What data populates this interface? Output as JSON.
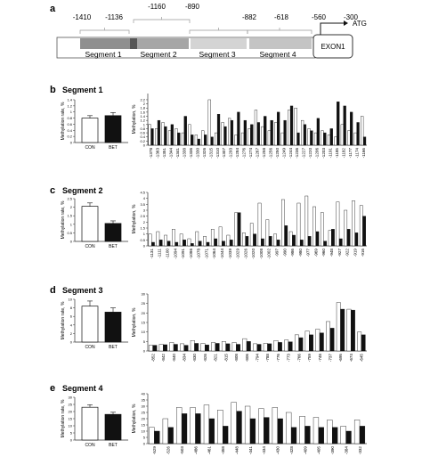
{
  "chart_data": [
    {
      "type": "diagram",
      "panel_label": "a",
      "positions_top": [
        "-1410",
        "-1136",
        "-1160",
        "-890",
        "-882",
        "-618",
        "-560",
        "-300"
      ],
      "segments": [
        "Segment 1",
        "Segment 2",
        "Segment 3",
        "Segment 4"
      ],
      "exon_label": "EXON1",
      "atg_label": "ATG",
      "colors": {
        "seg1": "#8f8f8f",
        "seg1_dark": "#555555",
        "seg2": "#a6a6a6",
        "seg3": "#d4d4d4",
        "seg4": "#c4c4c4"
      }
    },
    {
      "type": "bar",
      "panel_label": "b",
      "title": "Segment 1",
      "summary": {
        "categories": [
          "CON",
          "BET"
        ],
        "values": [
          0.8,
          0.88
        ],
        "errors": [
          0.08,
          0.1
        ],
        "ylabel": "Methylation rate, %",
        "ylim": [
          0,
          1.4
        ],
        "ticks": [
          0,
          0.2,
          0.4,
          0.6,
          0.8,
          1.0,
          1.2,
          1.4
        ]
      },
      "ylabel": "Methylation, %",
      "ylim": [
        0,
        2.5
      ],
      "ticks": [
        0,
        0.2,
        0.4,
        0.6,
        0.8,
        1.0,
        1.2,
        1.4,
        1.6,
        1.8,
        2.0,
        2.2
      ],
      "categories": [
        "-1378",
        "-1363",
        "-1351",
        "-1344",
        "-1341",
        "-1338",
        "-1336",
        "-1330",
        "-1326",
        "-1315",
        "-1310",
        "-1307",
        "-1293",
        "-1284",
        "-1276",
        "-1274",
        "-1267",
        "-1258",
        "-1256",
        "-1250",
        "-1249",
        "-1244",
        "-1236",
        "-1227",
        "-1220",
        "-1206",
        "-1203",
        "-1191",
        "-1185",
        "-1182",
        "-1177",
        "-1174",
        "-1166"
      ],
      "series": [
        {
          "name": "CON",
          "values": [
            1.0,
            0.8,
            1.1,
            0.7,
            0.8,
            0.6,
            1.0,
            0.5,
            0.7,
            2.2,
            0.6,
            1.1,
            1.3,
            0.5,
            0.6,
            0.8,
            1.7,
            0.9,
            0.7,
            1.1,
            0.6,
            1.7,
            1.8,
            1.2,
            0.8,
            0.6,
            0.7,
            0.5,
            0.4,
            1.0,
            0.7,
            0.6,
            1.4
          ]
        },
        {
          "name": "BET",
          "values": [
            0.8,
            1.2,
            0.9,
            1.0,
            0.6,
            1.4,
            0.5,
            0.3,
            0.5,
            0.4,
            1.5,
            0.9,
            1.2,
            1.6,
            1.2,
            1.0,
            1.1,
            1.4,
            1.2,
            1.6,
            1.2,
            1.9,
            0.6,
            1.0,
            0.7,
            1.3,
            0.6,
            0.8,
            2.1,
            1.9,
            1.6,
            1.1,
            0.4
          ]
        }
      ]
    },
    {
      "type": "bar",
      "panel_label": "c",
      "title": "Segment 2",
      "summary": {
        "categories": [
          "CON",
          "BET"
        ],
        "values": [
          2.05,
          1.05
        ],
        "errors": [
          0.2,
          0.15
        ],
        "ylabel": "Methylation rate, %",
        "ylim": [
          0,
          2.5
        ],
        "ticks": [
          0,
          0.5,
          1.0,
          1.5,
          2.0,
          2.5
        ]
      },
      "ylabel": "Methylation, %",
      "ylim": [
        0,
        4.5
      ],
      "ticks": [
        0,
        0.5,
        1.0,
        1.5,
        2.0,
        2.5,
        3.0,
        3.5,
        4.0,
        4.5
      ],
      "categories": [
        "-1131",
        "-1111",
        "-1100",
        "-1094",
        "-1091",
        "-1086",
        "-1078",
        "-1071",
        "-1064",
        "-1044",
        "-1039",
        "-1029",
        "-1026",
        "-1020",
        "-1008",
        "-1002",
        "-997",
        "-990",
        "-986",
        "-980",
        "-977",
        "-969",
        "-960",
        "-948",
        "-927",
        "-922",
        "-919",
        "-916"
      ],
      "series": [
        {
          "name": "CON",
          "values": [
            1.0,
            1.2,
            0.9,
            1.4,
            1.0,
            0.6,
            1.2,
            0.8,
            1.4,
            1.6,
            0.9,
            2.8,
            1.1,
            1.9,
            3.6,
            2.2,
            1.0,
            3.9,
            1.2,
            3.6,
            4.2,
            3.3,
            2.8,
            1.3,
            3.7,
            3.0,
            3.8,
            3.4
          ]
        },
        {
          "name": "BET",
          "values": [
            0.3,
            0.5,
            0.4,
            0.3,
            0.5,
            0.2,
            0.4,
            0.3,
            0.6,
            0.4,
            0.5,
            2.8,
            0.8,
            1.0,
            0.6,
            0.8,
            0.5,
            1.7,
            0.9,
            0.5,
            0.8,
            1.2,
            0.4,
            1.4,
            0.6,
            1.4,
            1.1,
            2.5
          ]
        }
      ]
    },
    {
      "type": "bar",
      "panel_label": "d",
      "title": "Segment 3",
      "summary": {
        "categories": [
          "CON",
          "BET"
        ],
        "values": [
          8.4,
          7.0
        ],
        "errors": [
          1.2,
          1.0
        ],
        "ylabel": "Methylation rate, %",
        "ylim": [
          0,
          10
        ],
        "ticks": [
          0,
          2,
          4,
          6,
          8,
          10
        ]
      },
      "ylabel": "Methylation, %",
      "ylim": [
        0,
        30
      ],
      "ticks": [
        0,
        5,
        10,
        15,
        20,
        25,
        30
      ],
      "categories": [
        "-852",
        "-842",
        "-840",
        "-834",
        "-830",
        "-826",
        "-821",
        "-815",
        "-808",
        "-806",
        "-794",
        "-788",
        "-776",
        "-773",
        "-766",
        "-759",
        "-748",
        "-737",
        "-695",
        "-674",
        "-645"
      ],
      "series": [
        {
          "name": "CON",
          "values": [
            3,
            3.5,
            4.5,
            3.8,
            5.5,
            4.0,
            4.5,
            5.0,
            4.5,
            6.5,
            3.8,
            4.0,
            5.5,
            5.8,
            8.5,
            10.5,
            11.5,
            15.5,
            25.5,
            22.0,
            10.0
          ]
        },
        {
          "name": "BET",
          "values": [
            3,
            3.3,
            3.5,
            3.0,
            4.0,
            3.2,
            4.0,
            3.8,
            3.5,
            5.0,
            3.5,
            3.8,
            4.5,
            4.8,
            7.0,
            8.5,
            9.5,
            12.0,
            22.0,
            21.5,
            8.5
          ]
        }
      ]
    },
    {
      "type": "bar",
      "panel_label": "e",
      "title": "Segment 4",
      "summary": {
        "categories": [
          "CON",
          "BET"
        ],
        "values": [
          23,
          18
        ],
        "errors": [
          1.8,
          1.5
        ],
        "ylabel": "Methylation rate, %",
        "ylim": [
          0,
          30
        ],
        "ticks": [
          0,
          5,
          10,
          15,
          20,
          25,
          30
        ]
      },
      "ylabel": "Methylation, %",
      "ylim": [
        0,
        40
      ],
      "ticks": [
        0,
        5,
        10,
        15,
        20,
        25,
        30,
        35,
        40
      ],
      "categories": [
        "-529",
        "-526",
        "-503",
        "-486",
        "-461",
        "-458",
        "-448",
        "-441",
        "-434",
        "-430",
        "-428",
        "-409",
        "-405",
        "-390",
        "-384",
        "-332"
      ],
      "series": [
        {
          "name": "CON",
          "values": [
            13,
            20,
            29,
            29,
            31,
            27,
            33,
            30,
            28,
            29,
            25,
            22,
            21,
            19,
            14,
            19
          ]
        },
        {
          "name": "BET",
          "values": [
            10,
            13,
            24,
            24,
            20,
            14,
            26,
            20,
            21,
            20,
            13,
            14,
            13,
            13,
            10,
            14
          ]
        }
      ]
    }
  ]
}
